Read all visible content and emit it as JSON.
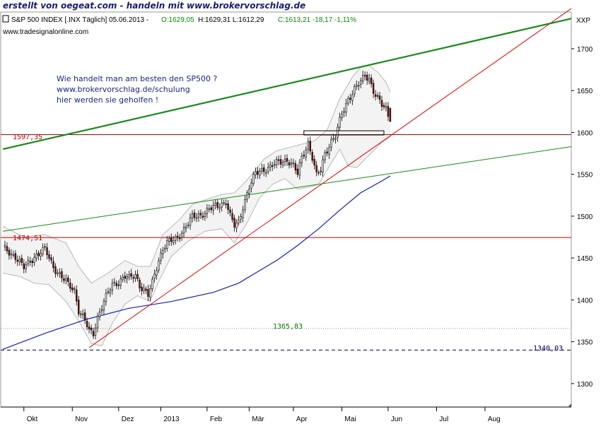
{
  "banner": "erstellt von oegeat.com - handeln mit www.brokervorschlag.de",
  "header": {
    "symbol": "S&P 500 INDEX [.INX Täglich] 05.06.2013 -",
    "open": "O:1629,05",
    "high_low": "H:1629,31 L:1612,29",
    "close_change": "C:1613,21 -18,17 -1,11%",
    "source": "www.tradesignalonline.com",
    "axis_code": "XXP"
  },
  "annotation": {
    "line1": "Wie handelt man am besten den SP500 ?",
    "line2": "www.brokervorschlag.de/schulung",
    "line3": "hier werden sie geholfen !"
  },
  "levels": {
    "l1597": "1597,35",
    "l1474": "1474,51",
    "l1365": "1365,83",
    "l1340": "1340,03"
  },
  "colors": {
    "candle_up": "#ffffff",
    "candle_down": "#8b1010",
    "bollinger": "#b8b8b8",
    "ma": "#1020c0",
    "trend_red": "#e00000",
    "channel_green": "#1a8a1a",
    "level_red": "#c00000"
  },
  "chart_data": {
    "type": "candlestick",
    "title": "S&P 500 INDEX [.INX Täglich] 05.06.2013",
    "y_ticks": [
      1300,
      1350,
      1400,
      1450,
      1500,
      1550,
      1600,
      1650,
      1700
    ],
    "ylim": [
      1272,
      1743
    ],
    "x_ticks": [
      "Okt",
      "Nov",
      "Dez",
      "2013",
      "Feb",
      "Mär",
      "Apr",
      "Mai",
      "Jun",
      "Jul",
      "Aug"
    ],
    "last_bar": {
      "date": "05.06.2013",
      "open": 1629.05,
      "high": 1629.31,
      "low": 1612.29,
      "close": 1613.21,
      "change": -18.17,
      "change_pct": -1.11
    },
    "close_path": [
      [
        0,
        1462
      ],
      [
        6,
        1452
      ],
      [
        10,
        1438
      ],
      [
        15,
        1452
      ],
      [
        20,
        1460
      ],
      [
        24,
        1440
      ],
      [
        27,
        1430
      ],
      [
        31,
        1418
      ],
      [
        34,
        1412
      ],
      [
        36,
        1388
      ],
      [
        39,
        1375
      ],
      [
        41,
        1362
      ],
      [
        43,
        1360
      ],
      [
        45,
        1380
      ],
      [
        48,
        1398
      ],
      [
        50,
        1408
      ],
      [
        52,
        1418
      ],
      [
        55,
        1422
      ],
      [
        58,
        1428
      ],
      [
        60,
        1425
      ],
      [
        63,
        1430
      ],
      [
        65,
        1418
      ],
      [
        67,
        1412
      ],
      [
        69,
        1405
      ],
      [
        71,
        1420
      ],
      [
        72,
        1430
      ],
      [
        74,
        1448
      ],
      [
        76,
        1462
      ],
      [
        78,
        1468
      ],
      [
        82,
        1472
      ],
      [
        86,
        1485
      ],
      [
        90,
        1498
      ],
      [
        94,
        1502
      ],
      [
        98,
        1508
      ],
      [
        102,
        1512
      ],
      [
        106,
        1518
      ],
      [
        108,
        1500
      ],
      [
        110,
        1488
      ],
      [
        112,
        1492
      ],
      [
        114,
        1512
      ],
      [
        117,
        1535
      ],
      [
        120,
        1550
      ],
      [
        123,
        1555
      ],
      [
        126,
        1558
      ],
      [
        129,
        1562
      ],
      [
        132,
        1565
      ],
      [
        135,
        1568
      ],
      [
        138,
        1560
      ],
      [
        140,
        1550
      ],
      [
        142,
        1570
      ],
      [
        145,
        1588
      ],
      [
        147,
        1570
      ],
      [
        149,
        1548
      ],
      [
        151,
        1555
      ],
      [
        153,
        1575
      ],
      [
        156,
        1590
      ],
      [
        158,
        1595
      ],
      [
        161,
        1622
      ],
      [
        164,
        1640
      ],
      [
        167,
        1652
      ],
      [
        170,
        1660
      ],
      [
        172,
        1668
      ],
      [
        174,
        1665
      ],
      [
        176,
        1650
      ],
      [
        178,
        1640
      ],
      [
        180,
        1632
      ],
      [
        182,
        1628
      ],
      [
        184,
        1613
      ]
    ],
    "bollinger_upper": [
      [
        0,
        1488
      ],
      [
        10,
        1475
      ],
      [
        20,
        1478
      ],
      [
        30,
        1468
      ],
      [
        36,
        1440
      ],
      [
        42,
        1420
      ],
      [
        50,
        1432
      ],
      [
        58,
        1447
      ],
      [
        64,
        1440
      ],
      [
        70,
        1440
      ],
      [
        76,
        1478
      ],
      [
        84,
        1496
      ],
      [
        90,
        1514
      ],
      [
        98,
        1521
      ],
      [
        104,
        1526
      ],
      [
        110,
        1528
      ],
      [
        116,
        1543
      ],
      [
        124,
        1568
      ],
      [
        130,
        1578
      ],
      [
        136,
        1582
      ],
      [
        142,
        1586
      ],
      [
        148,
        1590
      ],
      [
        154,
        1603
      ],
      [
        160,
        1640
      ],
      [
        166,
        1666
      ],
      [
        170,
        1678
      ],
      [
        174,
        1680
      ],
      [
        178,
        1672
      ],
      [
        182,
        1660
      ],
      [
        184,
        1648
      ]
    ],
    "bollinger_lower": [
      [
        0,
        1432
      ],
      [
        8,
        1428
      ],
      [
        15,
        1420
      ],
      [
        22,
        1418
      ],
      [
        30,
        1398
      ],
      [
        36,
        1375
      ],
      [
        42,
        1348
      ],
      [
        47,
        1345
      ],
      [
        52,
        1372
      ],
      [
        58,
        1395
      ],
      [
        64,
        1405
      ],
      [
        70,
        1398
      ],
      [
        74,
        1422
      ],
      [
        80,
        1452
      ],
      [
        88,
        1470
      ],
      [
        96,
        1482
      ],
      [
        104,
        1485
      ],
      [
        110,
        1468
      ],
      [
        116,
        1492
      ],
      [
        122,
        1522
      ],
      [
        128,
        1538
      ],
      [
        134,
        1545
      ],
      [
        140,
        1532
      ],
      [
        146,
        1535
      ],
      [
        150,
        1538
      ],
      [
        154,
        1555
      ],
      [
        160,
        1580
      ],
      [
        164,
        1560
      ],
      [
        168,
        1558
      ],
      [
        172,
        1568
      ],
      [
        176,
        1578
      ],
      [
        180,
        1588
      ],
      [
        184,
        1595
      ]
    ],
    "moving_average": [
      [
        0,
        1341
      ],
      [
        20,
        1360
      ],
      [
        40,
        1377
      ],
      [
        60,
        1390
      ],
      [
        80,
        1398
      ],
      [
        100,
        1409
      ],
      [
        112,
        1420
      ],
      [
        120,
        1432
      ],
      [
        130,
        1447
      ],
      [
        140,
        1465
      ],
      [
        150,
        1485
      ],
      [
        160,
        1507
      ],
      [
        170,
        1528
      ],
      [
        180,
        1542
      ],
      [
        184,
        1548
      ]
    ],
    "trendlines": [
      {
        "color": "red",
        "from": [
          41,
          1343
        ],
        "to": [
          270,
          1748
        ]
      },
      {
        "color": "green",
        "from": [
          0,
          1580
        ],
        "to": [
          270,
          1736
        ]
      },
      {
        "color": "green",
        "from": [
          0,
          1482
        ],
        "to": [
          270,
          1583
        ]
      }
    ],
    "horizontal_levels": [
      {
        "value": 1597.35,
        "style": "solid-red"
      },
      {
        "value": 1474.51,
        "style": "solid-red"
      },
      {
        "value": 1365.83,
        "style": "dotted-gray"
      },
      {
        "value": 1340.03,
        "style": "dashed-navy"
      }
    ],
    "rectangle": {
      "x0": 143,
      "x1": 181,
      "y0": 1597,
      "y1": 1602
    }
  }
}
